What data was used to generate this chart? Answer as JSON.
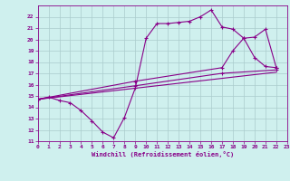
{
  "bg_color": "#cff0ee",
  "grid_color": "#aacccc",
  "line_color": "#880088",
  "xlabel": "Windchill (Refroidissement éolien,°C)",
  "xlim": [
    0,
    23
  ],
  "ylim": [
    11,
    23
  ],
  "xticks": [
    0,
    1,
    2,
    3,
    4,
    5,
    6,
    7,
    8,
    9,
    10,
    11,
    12,
    13,
    14,
    15,
    16,
    17,
    18,
    19,
    20,
    21,
    22,
    23
  ],
  "yticks": [
    11,
    12,
    13,
    14,
    15,
    16,
    17,
    18,
    19,
    20,
    21,
    22
  ],
  "series_main": [
    [
      0,
      14.7
    ],
    [
      1,
      14.9
    ],
    [
      2,
      14.6
    ],
    [
      3,
      14.4
    ],
    [
      4,
      13.7
    ],
    [
      5,
      12.8
    ],
    [
      6,
      11.8
    ],
    [
      7,
      11.3
    ],
    [
      8,
      13.1
    ],
    [
      9,
      15.7
    ],
    [
      10,
      20.1
    ],
    [
      11,
      21.4
    ],
    [
      12,
      21.4
    ],
    [
      13,
      21.5
    ],
    [
      14,
      21.6
    ],
    [
      15,
      22.0
    ],
    [
      16,
      22.6
    ],
    [
      17,
      21.1
    ],
    [
      18,
      20.9
    ],
    [
      19,
      20.1
    ],
    [
      20,
      18.4
    ],
    [
      21,
      17.6
    ],
    [
      22,
      17.5
    ]
  ],
  "series_line2": [
    [
      0,
      14.7
    ],
    [
      9,
      16.3
    ],
    [
      17,
      17.5
    ],
    [
      18,
      19.0
    ],
    [
      19,
      20.1
    ],
    [
      20,
      20.2
    ],
    [
      21,
      20.9
    ],
    [
      22,
      17.5
    ]
  ],
  "series_line3": [
    [
      0,
      14.7
    ],
    [
      9,
      15.9
    ],
    [
      17,
      17.0
    ],
    [
      22,
      17.3
    ]
  ],
  "series_line4": [
    [
      0,
      14.7
    ],
    [
      22,
      17.1
    ]
  ]
}
